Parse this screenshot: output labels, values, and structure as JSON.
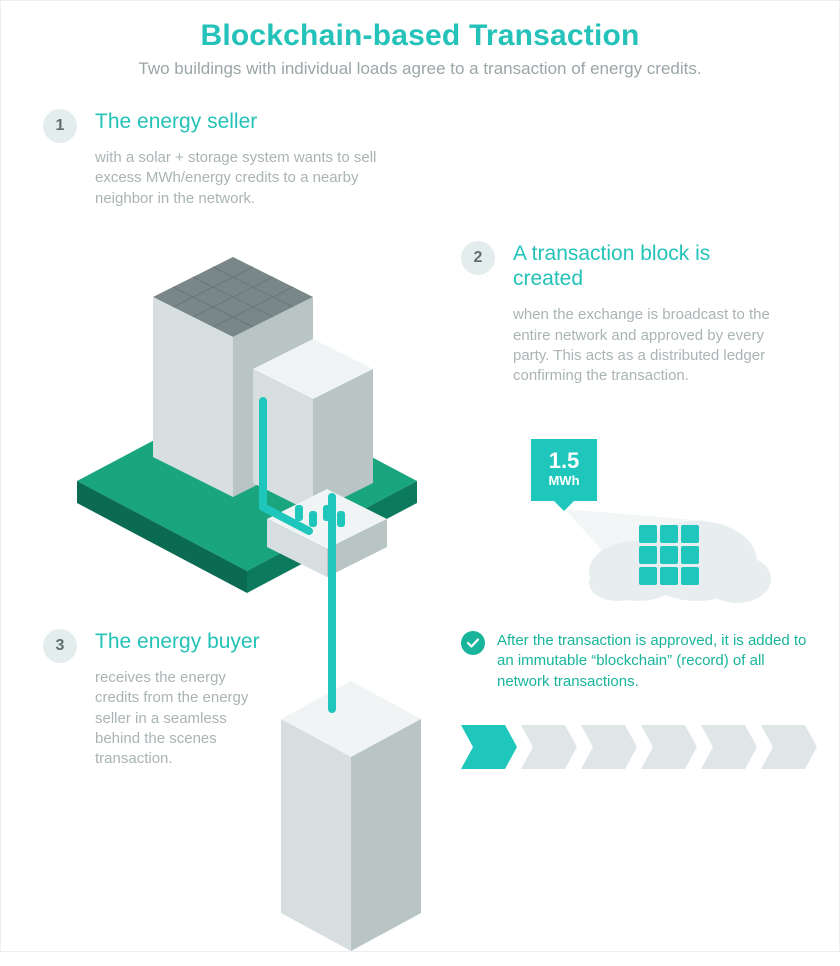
{
  "colors": {
    "accent": "#24c2b8",
    "accent_solid": "#1fc6bb",
    "accent_dark": "#18b59c",
    "muted_text": "#9aa6a7",
    "body_text": "#aab4b5",
    "badge_bg": "#e4eded",
    "badge_text": "#5f6f70",
    "platform_top": "#19a57d",
    "platform_side_r": "#0c7a5d",
    "platform_side_l": "#0a6b52",
    "bldg_light": "#f1f4f4",
    "bldg_mid": "#d7dedf",
    "bldg_dark": "#b9c4c5",
    "roof_solar": "#7a8788",
    "cloud": "#e8eeef",
    "chev_inactive": "#dfe6e7",
    "white": "#ffffff"
  },
  "header": {
    "title": "Blockchain-based Transaction",
    "subtitle": "Two buildings with individual loads agree to a transaction of energy credits."
  },
  "sections": {
    "s1": {
      "num": "1",
      "title": "The energy seller",
      "body": "with a solar + storage system wants to sell excess MWh/energy credits to a nearby neighbor in the network."
    },
    "s2": {
      "num": "2",
      "title": "A transaction block is created",
      "body": "when the exchange is broadcast to the entire network and approved by every party. This acts as a distributed ledger confirming the transaction."
    },
    "s3": {
      "num": "3",
      "title": "The energy buyer",
      "body": "receives the energy credits from the energy seller in a seamless behind the scenes transaction."
    }
  },
  "approved": {
    "text": "After the transaction is approved, it is added to an immutable “blockchain” (record) of all network transactions."
  },
  "energy_tag": {
    "value": "1.5",
    "unit": "MWh"
  },
  "chain": {
    "count": 6,
    "active_index": 0,
    "block_w": 56,
    "block_h": 44,
    "notch": 12
  },
  "ledger_grid": {
    "rows": 3,
    "cols": 3
  },
  "font_sizes": {
    "title": 30,
    "subtitle": 17,
    "section_title": 21,
    "body": 15
  }
}
